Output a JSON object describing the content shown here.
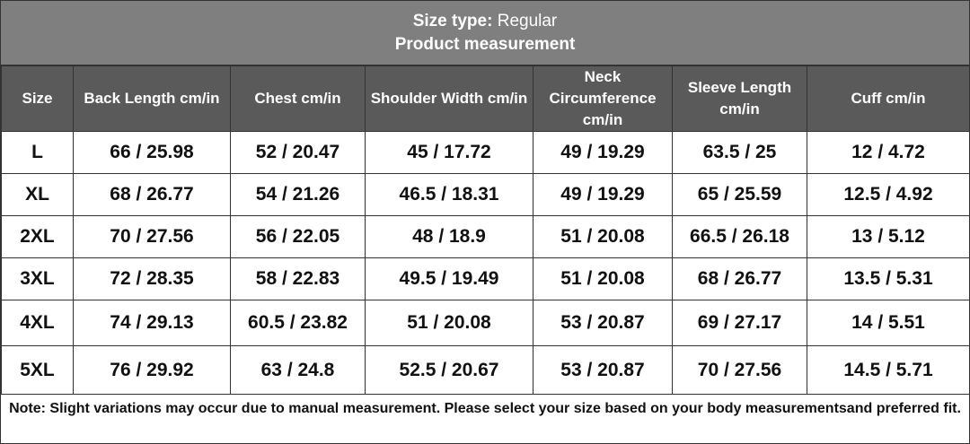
{
  "header": {
    "size_type_label": "Size type:",
    "size_type_value": "Regular",
    "title": "Product measurement"
  },
  "table": {
    "columns": [
      "Size",
      "Back Length cm/in",
      "Chest cm/in",
      "Shoulder Width cm/in",
      "Neck Circumference cm/in",
      "Sleeve Length cm/in",
      "Cuff cm/in"
    ],
    "rows": [
      [
        "L",
        "66 / 25.98",
        "52 / 20.47",
        "45 / 17.72",
        "49 / 19.29",
        "63.5 / 25",
        "12 / 4.72"
      ],
      [
        "XL",
        "68 / 26.77",
        "54 / 21.26",
        "46.5 / 18.31",
        "49 / 19.29",
        "65 / 25.59",
        "12.5 / 4.92"
      ],
      [
        "2XL",
        "70 / 27.56",
        "56 / 22.05",
        "48 / 18.9",
        "51 / 20.08",
        "66.5 / 26.18",
        "13 / 5.12"
      ],
      [
        "3XL",
        "72 / 28.35",
        "58 / 22.83",
        "49.5 / 19.49",
        "51 / 20.08",
        "68 / 26.77",
        "13.5 / 5.31"
      ],
      [
        "4XL",
        "74 / 29.13",
        "60.5 / 23.82",
        "51 / 20.08",
        "53 / 20.87",
        "69 / 27.17",
        "14 / 5.51"
      ],
      [
        "5XL",
        "76 / 29.92",
        "63 / 24.8",
        "52.5 / 20.67",
        "53 / 20.87",
        "70 / 27.56",
        "14.5 / 5.71"
      ]
    ]
  },
  "note": "Note: Slight variations may occur due to manual measurement. Please select your size based on your body measurementsand preferred fit."
}
